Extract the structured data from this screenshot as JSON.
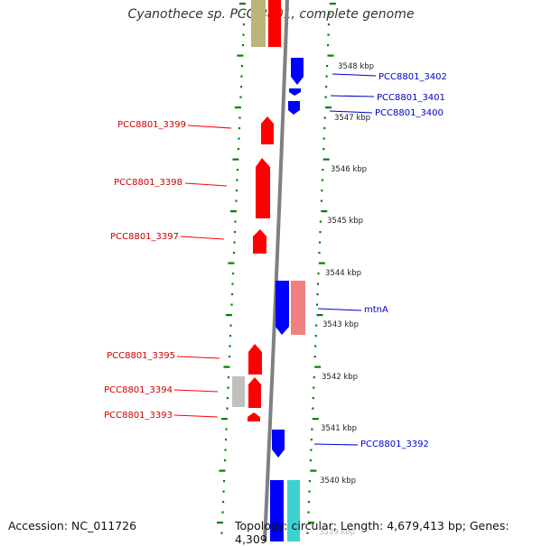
{
  "title": "Cyanothece sp. PCC 8801, complete genome",
  "accession": "Accession: NC_011726",
  "topology": "Topology: circular; Length: 4,679,413 bp; Genes: 4,309",
  "colors": {
    "forward": "#ff0000",
    "reverse": "#0000ff",
    "tick": "#008000",
    "backbone": "#808080",
    "forward_pseudo": "#bdb47a",
    "reverse_pseudo": "#f08080",
    "rna": "#40d0d0",
    "misc": "#c0c0c0"
  },
  "scale_labels": [
    "3548 kbp",
    "3547 kbp",
    "3546 kbp",
    "3545 kbp",
    "3544 kbp",
    "3543 kbp",
    "3542 kbp",
    "3541 kbp",
    "3540 kbp",
    "3539 kbp"
  ],
  "gene_labels": {
    "left": [
      "PCC8801_3399",
      "PCC8801_3398",
      "PCC8801_3397",
      "PCC8801_3395",
      "PCC8801_3394",
      "PCC8801_3393"
    ],
    "right": [
      "PCC8801_3402",
      "PCC8801_3401",
      "PCC8801_3400",
      "mtnA",
      "PCC8801_3392"
    ]
  }
}
